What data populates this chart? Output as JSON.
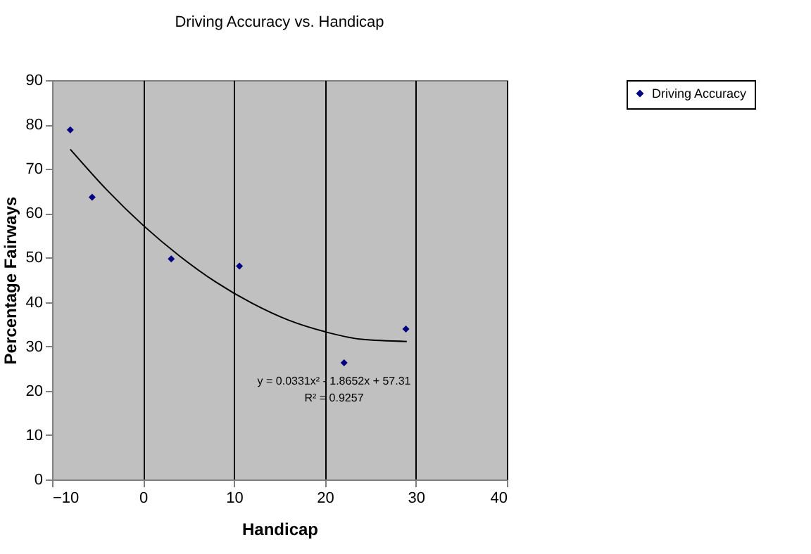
{
  "chart_data": {
    "type": "scatter",
    "title": "Driving Accuracy vs. Handicap",
    "xlabel": "Handicap",
    "ylabel": "Percentage Fairways",
    "xlim": [
      -10,
      40
    ],
    "xticks": [
      -10,
      0,
      10,
      20,
      30,
      40
    ],
    "ylim": [
      0,
      90
    ],
    "yticks": [
      0,
      10,
      20,
      30,
      40,
      50,
      60,
      70,
      80,
      90
    ],
    "grid": "x",
    "legend": "right",
    "marker": "diamond",
    "series": [
      {
        "name": "Driving Accuracy",
        "color": "#000080",
        "x": [
          -8.0,
          -5.6,
          3.1,
          10.6,
          22.1,
          28.9
        ],
        "values": [
          78.8,
          63.6,
          49.7,
          48.1,
          26.3,
          33.9
        ]
      },
      {
        "type": "line",
        "color": "#000000",
        "line_style": "solid",
        "marker": "none",
        "x": [
          -8,
          -4,
          0,
          4,
          8,
          12,
          16,
          20,
          24,
          29
        ],
        "values": [
          74.4,
          65.3,
          57.3,
          50.4,
          44.5,
          39.7,
          35.9,
          33.3,
          31.6,
          31.1
        ]
      }
    ],
    "annotations": [
      "y = 0.0331x² - 1.8652x + 57.31",
      "R² = 0.9257"
    ]
  }
}
